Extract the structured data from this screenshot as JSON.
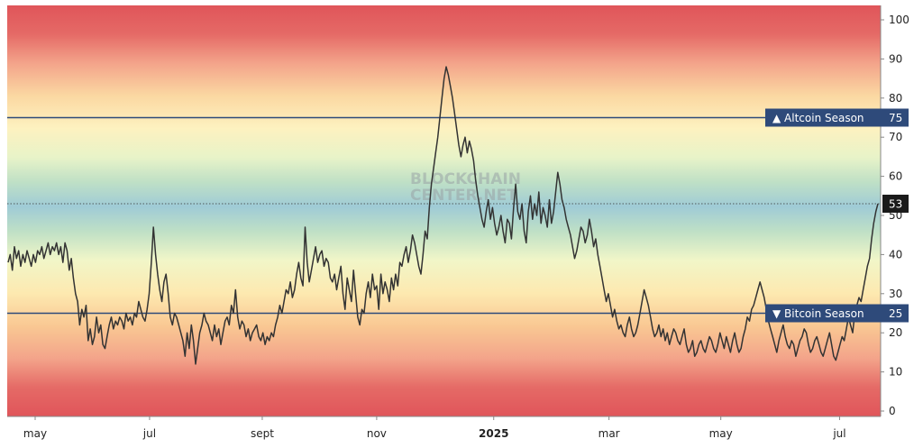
{
  "watermark": {
    "line1": "BLOCKCHAIN",
    "line2": "CENTER.NET"
  },
  "chart_data": {
    "type": "line",
    "ylim": [
      0,
      100
    ],
    "yticks": [
      0,
      10,
      20,
      30,
      40,
      50,
      60,
      70,
      80,
      90,
      100
    ],
    "xticks": [
      {
        "label": "may",
        "t": 0.032
      },
      {
        "label": "jul",
        "t": 0.163
      },
      {
        "label": "sept",
        "t": 0.292
      },
      {
        "label": "nov",
        "t": 0.423
      },
      {
        "label": "2025",
        "t": 0.557,
        "year": true
      },
      {
        "label": "mar",
        "t": 0.689
      },
      {
        "label": "may",
        "t": 0.817
      },
      {
        "label": "jul",
        "t": 0.953
      }
    ],
    "reference_lines": [
      {
        "label": "▲ Altcoin Season",
        "value": 75
      },
      {
        "label": "▼ Bitcoin Season",
        "value": 25
      }
    ],
    "current_value": 53,
    "colors": {
      "line": "#333333",
      "reference": "#2e4a7a",
      "badge": "#2e4a7a",
      "current_badge": "#1a1a1a",
      "high_zone": "#e05a5e",
      "low_zone": "#e05a5e",
      "mid_zone": "#9fcbd6"
    },
    "series": [
      {
        "values": [
          38,
          40,
          36,
          42,
          39,
          41,
          37,
          40,
          38,
          41,
          39,
          37,
          40,
          38,
          41,
          40,
          42,
          39,
          41,
          43,
          40,
          42,
          41,
          43,
          40,
          42,
          38,
          43,
          41,
          36,
          39,
          34,
          30,
          28,
          22,
          26,
          24,
          27,
          18,
          21,
          17,
          19,
          24,
          20,
          22,
          17,
          16,
          19,
          22,
          24,
          21,
          23,
          22,
          24,
          23,
          21,
          25,
          23,
          24,
          22,
          25,
          24,
          28,
          26,
          24,
          23,
          26,
          30,
          38,
          47,
          40,
          35,
          31,
          28,
          33,
          35,
          30,
          24,
          22,
          25,
          24,
          22,
          20,
          18,
          14,
          20,
          16,
          22,
          18,
          12,
          16,
          20,
          22,
          25,
          23,
          22,
          20,
          18,
          22,
          19,
          21,
          17,
          20,
          23,
          24,
          22,
          27,
          25,
          31,
          24,
          21,
          23,
          22,
          19,
          21,
          18,
          20,
          21,
          22,
          19,
          18,
          20,
          17,
          19,
          18,
          20,
          19,
          22,
          24,
          27,
          25,
          28,
          31,
          30,
          33,
          29,
          31,
          35,
          38,
          34,
          32,
          47,
          38,
          33,
          36,
          39,
          42,
          38,
          40,
          41,
          37,
          39,
          38,
          34,
          33,
          35,
          31,
          34,
          37,
          30,
          26,
          34,
          31,
          28,
          36,
          30,
          24,
          22,
          26,
          25,
          30,
          33,
          29,
          35,
          31,
          32,
          26,
          35,
          30,
          33,
          31,
          28,
          34,
          31,
          35,
          32,
          38,
          37,
          40,
          42,
          38,
          41,
          45,
          43,
          40,
          37,
          35,
          40,
          46,
          44,
          52,
          58,
          62,
          66,
          70,
          75,
          80,
          85,
          88,
          86,
          83,
          80,
          76,
          72,
          68,
          65,
          68,
          70,
          66,
          69,
          67,
          64,
          59,
          55,
          52,
          49,
          47,
          51,
          54,
          49,
          52,
          48,
          45,
          47,
          50,
          46,
          43,
          49,
          48,
          44,
          52,
          58,
          51,
          49,
          53,
          46,
          43,
          51,
          55,
          49,
          53,
          50,
          56,
          48,
          52,
          50,
          47,
          54,
          48,
          51,
          56,
          61,
          58,
          54,
          52,
          49,
          47,
          45,
          42,
          39,
          41,
          44,
          47,
          46,
          43,
          45,
          49,
          46,
          42,
          44,
          40,
          37,
          34,
          31,
          28,
          30,
          27,
          24,
          26,
          23,
          21,
          22,
          20,
          19,
          22,
          24,
          21,
          19,
          20,
          22,
          25,
          28,
          31,
          29,
          27,
          24,
          21,
          19,
          20,
          22,
          19,
          21,
          18,
          20,
          17,
          19,
          21,
          20,
          18,
          17,
          19,
          21,
          17,
          15,
          16,
          18,
          14,
          15,
          17,
          18,
          16,
          15,
          17,
          19,
          18,
          16,
          15,
          17,
          20,
          18,
          16,
          19,
          17,
          15,
          18,
          20,
          17,
          15,
          16,
          19,
          21,
          24,
          23,
          26,
          27,
          29,
          31,
          33,
          31,
          29,
          26,
          23,
          21,
          19,
          17,
          15,
          18,
          20,
          22,
          19,
          17,
          16,
          18,
          17,
          14,
          16,
          18,
          19,
          21,
          20,
          17,
          15,
          16,
          18,
          19,
          17,
          15,
          14,
          16,
          18,
          20,
          17,
          14,
          13,
          15,
          17,
          19,
          18,
          21,
          24,
          22,
          20,
          25,
          27,
          29,
          28,
          31,
          34,
          37,
          39,
          44,
          48,
          51,
          53
        ]
      }
    ]
  }
}
